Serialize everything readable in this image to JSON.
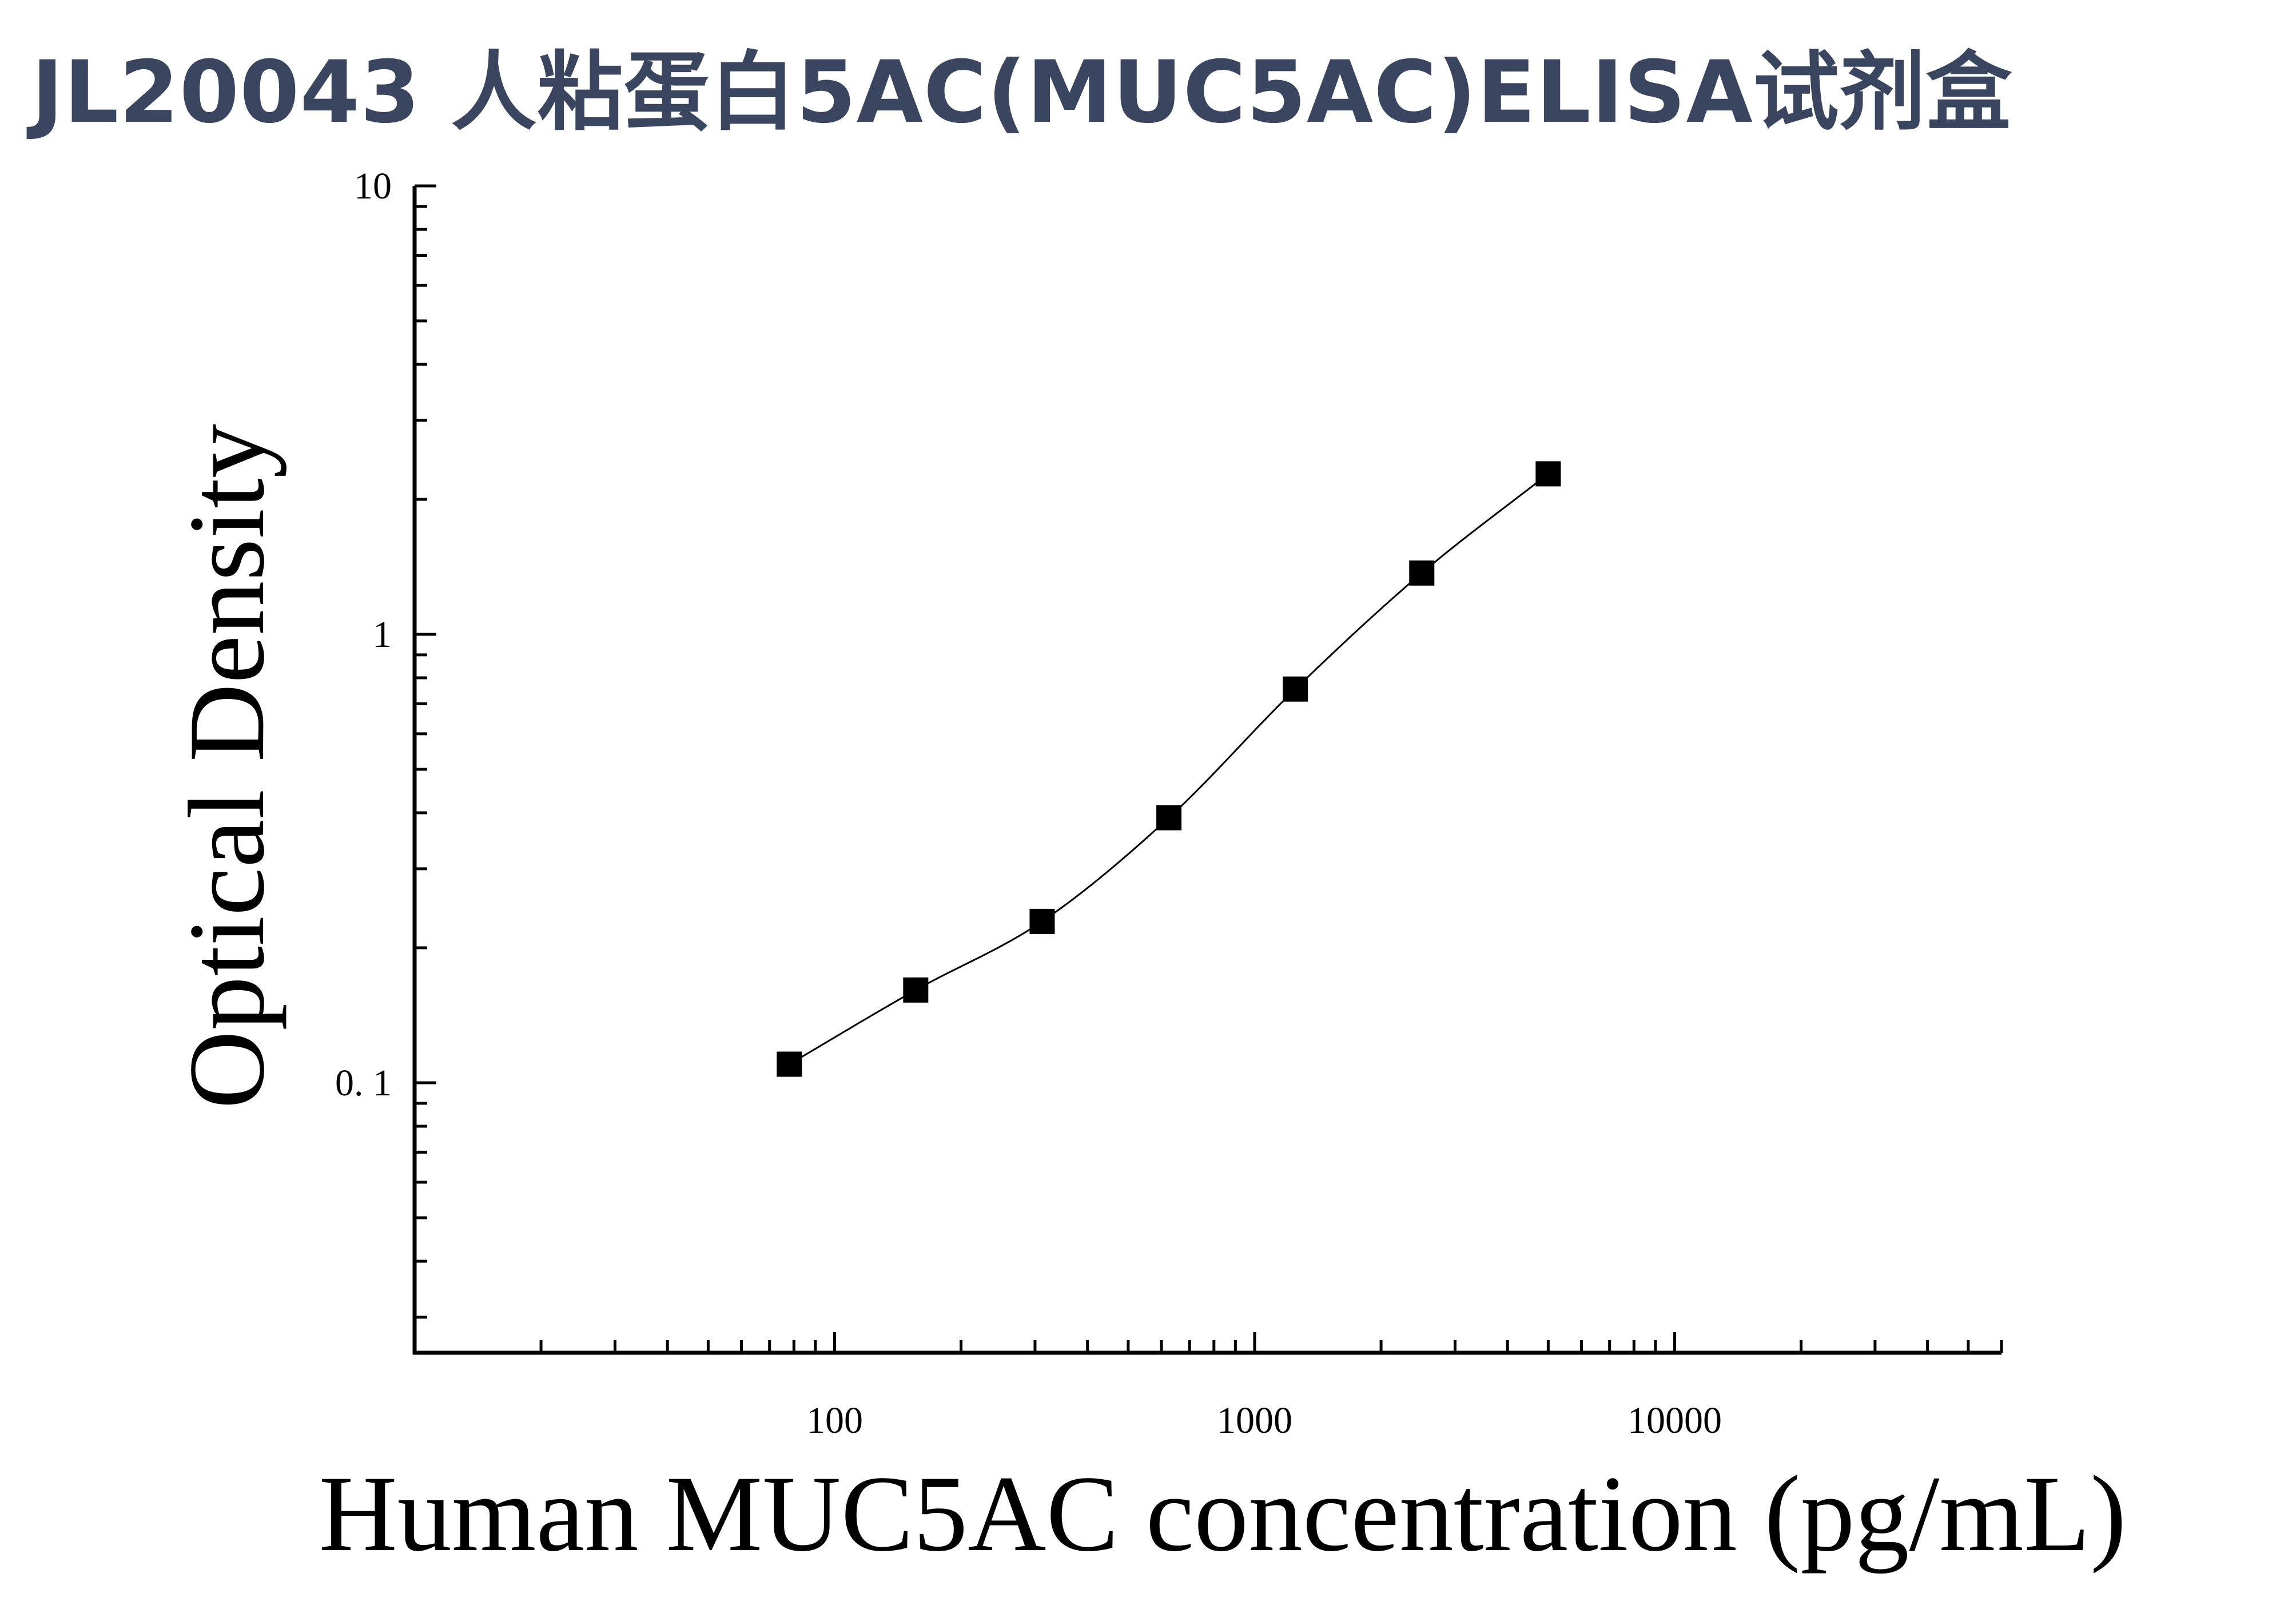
{
  "title": "JL20043 人粘蛋白5AC(MUC5AC)ELISA试剂盒",
  "chart_data": {
    "type": "scatter",
    "title": "JL20043 人粘蛋白5AC(MUC5AC)ELISA试剂盒",
    "xlabel": "Human MUC5AC concentration (pg/mL)",
    "ylabel": "Optical Density",
    "xscale": "log",
    "yscale": "log",
    "xlim": [
      10,
      60000
    ],
    "ylim": [
      0.025,
      10
    ],
    "x_ticks": [
      {
        "value": 100,
        "label": "100"
      },
      {
        "value": 1000,
        "label": "1000"
      },
      {
        "value": 10000,
        "label": "10000"
      }
    ],
    "y_ticks": [
      {
        "value": 10,
        "label": "10"
      },
      {
        "value": 1,
        "label": "1"
      },
      {
        "value": 0.1,
        "label": "0. 1"
      }
    ],
    "series": [
      {
        "marker": "square",
        "color": "#000000",
        "x": [
          78,
          156,
          312,
          625,
          1250,
          2500,
          5000
        ],
        "y": [
          0.11,
          0.161,
          0.229,
          0.39,
          0.755,
          1.37,
          2.28
        ]
      }
    ],
    "fit_curve": {
      "type": "smooth",
      "color": "#000000"
    },
    "grid": false,
    "legend": "none"
  }
}
